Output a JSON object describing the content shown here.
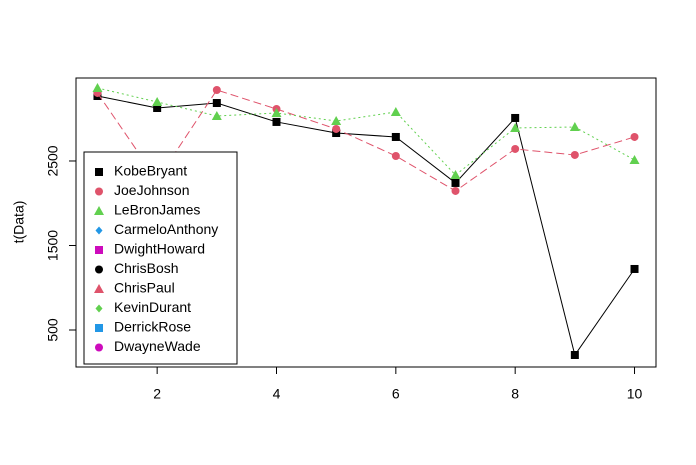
{
  "chart_data": {
    "type": "line",
    "ylabel": "t(Data)",
    "x": [
      1,
      2,
      3,
      4,
      5,
      6,
      7,
      8,
      9,
      10
    ],
    "xlim": [
      0.64,
      10.36
    ],
    "xticks": [
      2,
      4,
      6,
      8,
      10
    ],
    "ylim": [
      62,
      3482
    ],
    "yticks": [
      500,
      1500,
      2500
    ],
    "legend": "bottomleft",
    "series": [
      {
        "name": "KobeBryant",
        "color": "#000000",
        "marker": "square",
        "dash": "solid",
        "values": [
          3269,
          3127,
          3186,
          2962,
          2831,
          2784,
          2240,
          3009,
          204,
          1222
        ]
      },
      {
        "name": "JoeJohnson",
        "color": "#DF536B",
        "marker": "circle",
        "dash": "dashed",
        "values": [
          3305,
          2275,
          3340,
          3115,
          2879,
          2559,
          2145,
          2642,
          2571,
          2784
        ]
      },
      {
        "name": "LeBronJames",
        "color": "#61D04F",
        "marker": "triangle",
        "dash": "dotted",
        "values": [
          3364,
          3198,
          3033,
          3068,
          2973,
          3080,
          2334,
          2891,
          2902,
          2512
        ]
      },
      {
        "name": "CarmeloAnthony",
        "color": "#2297E6",
        "marker": "diamond"
      },
      {
        "name": "DwightHoward",
        "color": "#CD0BBC",
        "marker": "square"
      },
      {
        "name": "ChrisBosh",
        "color": "#000000",
        "marker": "circle"
      },
      {
        "name": "ChrisPaul",
        "color": "#DF536B",
        "marker": "triangle"
      },
      {
        "name": "KevinDurant",
        "color": "#61D04F",
        "marker": "diamond"
      },
      {
        "name": "DerrickRose",
        "color": "#2297E6",
        "marker": "square"
      },
      {
        "name": "DwayneWade",
        "color": "#CD0BBC",
        "marker": "circle"
      }
    ]
  }
}
